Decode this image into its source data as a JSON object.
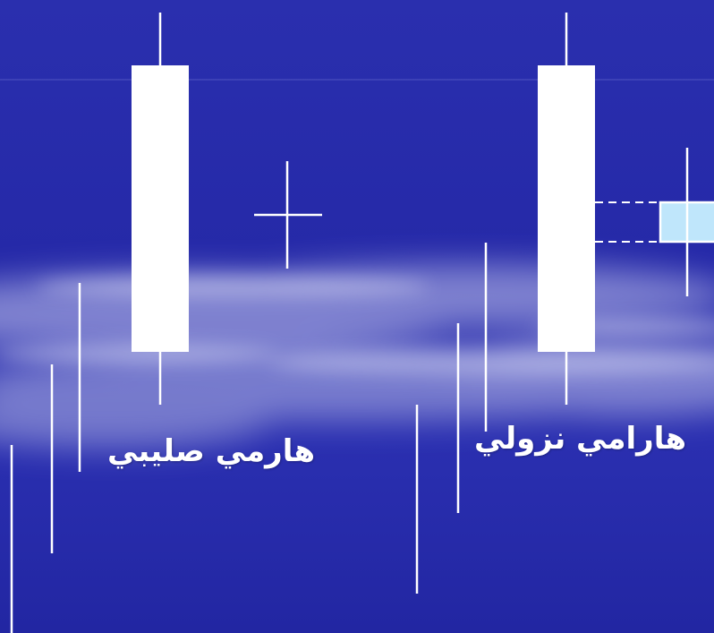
{
  "slide": {
    "background_color": "#2a2fae",
    "cloud_color": "#b9bce6"
  },
  "patterns": {
    "bullish_harami": {
      "label": "هارمي صليبي",
      "candle_color": "#ffffff"
    },
    "bearish_harami": {
      "label": "هارامي نزولي",
      "candle_color": "#ffffff",
      "small_body_color": "#bfe6fb"
    }
  }
}
